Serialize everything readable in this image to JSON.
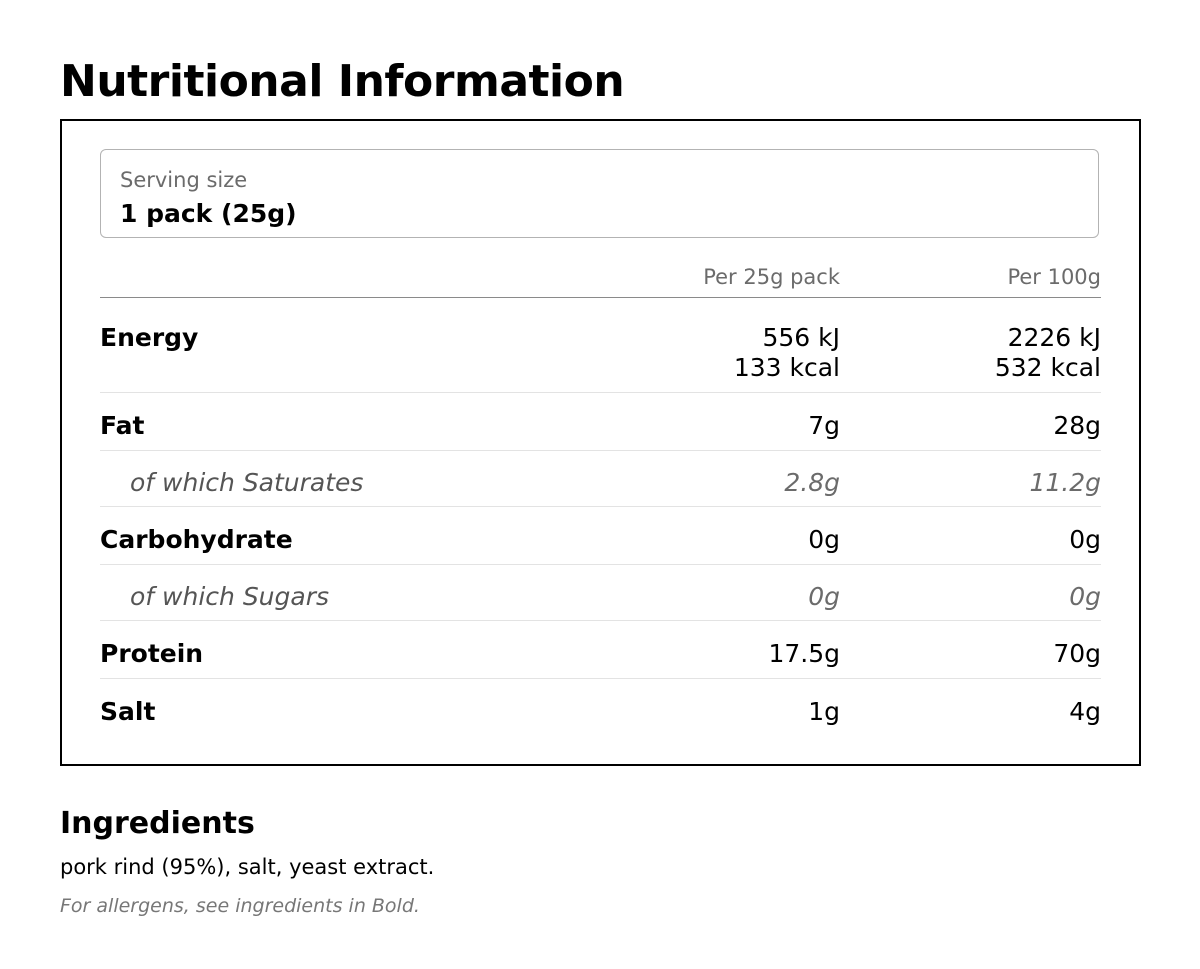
{
  "title": "Nutritional Information",
  "serving": {
    "label": "Serving size",
    "value": "1 pack (25g)"
  },
  "columns": {
    "per_pack": "Per 25g pack",
    "per_100g": "Per 100g"
  },
  "rows": {
    "energy": {
      "name": "Energy",
      "pack_kj": "556 kJ",
      "pack_kcal": "133 kcal",
      "per100_kj": "2226 kJ",
      "per100_kcal": "532 kcal"
    },
    "fat": {
      "name": "Fat",
      "pack": "7g",
      "per100": "28g"
    },
    "saturates": {
      "name": "of which Saturates",
      "pack": "2.8g",
      "per100": "11.2g"
    },
    "carbohydrate": {
      "name": "Carbohydrate",
      "pack": "0g",
      "per100": "0g"
    },
    "sugars": {
      "name": "of which Sugars",
      "pack": "0g",
      "per100": "0g"
    },
    "protein": {
      "name": "Protein",
      "pack": "17.5g",
      "per100": "70g"
    },
    "salt": {
      "name": "Salt",
      "pack": "1g",
      "per100": "4g"
    }
  },
  "ingredients": {
    "title": "Ingredients",
    "text": "pork rind (95%), salt, yeast extract.",
    "allergen_note": "For allergens, see ingredients in Bold."
  }
}
